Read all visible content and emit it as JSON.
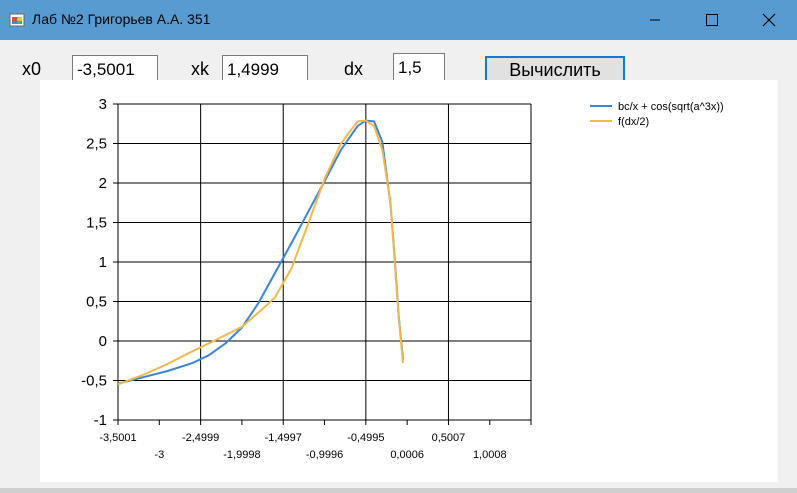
{
  "window": {
    "title": "Лаб №2 Григорьев А.А. 351",
    "accent_color": "#589bd0",
    "icons": {
      "app": "app-icon",
      "minimize": "minimize-icon",
      "maximize": "maximize-icon",
      "close": "close-icon"
    }
  },
  "controls": {
    "x0_label": "x0",
    "x0_value": "-3,5001",
    "xk_label": "xk",
    "xk_value": "1,4999",
    "dx_label": "dx",
    "dx_value": "1,5",
    "calc_label": "Вычислить"
  },
  "chart_data": {
    "type": "line",
    "ylim": [
      -1,
      3
    ],
    "xlim": [
      -3.5001,
      1.5
    ],
    "y_ticks": [
      "3",
      "2,5",
      "2",
      "1,5",
      "1",
      "0,5",
      "0",
      "-0,5",
      "-1"
    ],
    "y_tick_values": [
      3,
      2.5,
      2,
      1.5,
      1,
      0.5,
      0,
      -0.5,
      -1
    ],
    "x_ticks_row1": [
      "-3,5001",
      "-2,4999",
      "-1,4997",
      "-0,4995",
      "0,5007"
    ],
    "x_ticks_row1_values": [
      -3.5001,
      -2.4999,
      -1.4997,
      -0.4995,
      0.5007
    ],
    "x_ticks_row2": [
      "-3",
      "-1,9998",
      "-0,9996",
      "0,0006",
      "1,0008"
    ],
    "x_ticks_row2_values": [
      -3.0,
      -1.9998,
      -0.9996,
      0.0006,
      1.0008
    ],
    "grid": true,
    "legend_position": "top-right",
    "series": [
      {
        "name": "bc/x + cos(sqrt(a^3x))",
        "color": "#3a85d8",
        "x": [
          -3.5,
          -3.2,
          -2.9,
          -2.6,
          -2.4,
          -2.2,
          -2.0,
          -1.8,
          -1.6,
          -1.4,
          -1.2,
          -1.0,
          -0.8,
          -0.6,
          -0.5,
          -0.4,
          -0.3,
          -0.2,
          -0.15,
          -0.1,
          -0.05
        ],
        "y": [
          -0.54,
          -0.46,
          -0.38,
          -0.28,
          -0.18,
          -0.03,
          0.17,
          0.48,
          0.86,
          1.24,
          1.63,
          2.02,
          2.42,
          2.72,
          2.79,
          2.78,
          2.52,
          1.72,
          1.05,
          0.3,
          -0.23
        ]
      },
      {
        "name": "f(dx/2)",
        "color": "#f1b94a",
        "x": [
          -3.5,
          -3.2,
          -2.9,
          -2.6,
          -2.3,
          -2.0,
          -1.8,
          -1.6,
          -1.4,
          -1.2,
          -1.0,
          -0.8,
          -0.6,
          -0.5,
          -0.4,
          -0.3,
          -0.2,
          -0.15,
          -0.1,
          -0.05
        ],
        "y": [
          -0.55,
          -0.43,
          -0.29,
          -0.13,
          0.02,
          0.18,
          0.36,
          0.55,
          0.92,
          1.48,
          2.05,
          2.5,
          2.78,
          2.79,
          2.72,
          2.42,
          1.75,
          1.0,
          0.28,
          -0.28
        ]
      }
    ]
  }
}
